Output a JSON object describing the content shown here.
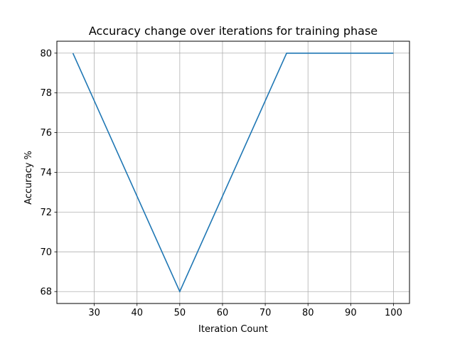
{
  "chart_data": {
    "type": "line",
    "title": "Accuracy change over iterations for training phase",
    "xlabel": "Iteration Count",
    "ylabel": "Accuracy %",
    "xlim": [
      21.25,
      103.75
    ],
    "ylim": [
      67.4,
      80.6
    ],
    "xticks": [
      30,
      40,
      50,
      60,
      70,
      80,
      90,
      100
    ],
    "yticks": [
      68,
      70,
      72,
      74,
      76,
      78,
      80
    ],
    "grid": true,
    "legend": "none",
    "series": [
      {
        "color": "#1f77b4",
        "x": [
          25,
          50,
          75,
          100
        ],
        "y": [
          80,
          68,
          80,
          80
        ]
      }
    ]
  }
}
